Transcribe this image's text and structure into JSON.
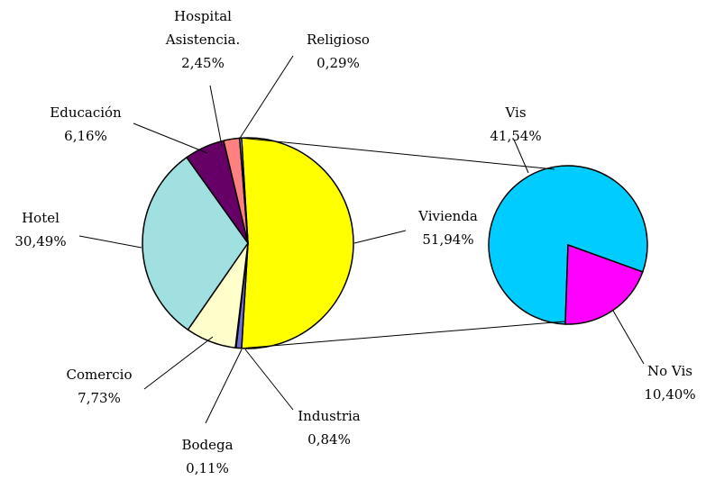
{
  "chart_data": {
    "type": "pie-of-pie",
    "categories": [
      "Vivienda",
      "Industria",
      "Bodega",
      "Comercio",
      "Hotel",
      "Educación",
      "Hospital Asistencia.",
      "Religioso"
    ],
    "values": [
      51.94,
      0.84,
      0.11,
      7.73,
      30.49,
      6.16,
      2.45,
      0.29
    ],
    "value_labels": [
      "51,94%",
      "0,84%",
      "0,11%",
      "7,73%",
      "30,49%",
      "6,16%",
      "2,45%",
      "0,29%"
    ],
    "colors": [
      "#ffff00",
      "#7070d8",
      "#993366",
      "#ffffcc",
      "#a0e0e0",
      "#660066",
      "#ff8080",
      "#ccffff"
    ],
    "breakout": {
      "categories": [
        "Vis",
        "No Vis"
      ],
      "values": [
        41.54,
        10.4
      ],
      "value_labels": [
        "41,54%",
        "10,40%"
      ],
      "colors": [
        "#00ccff",
        "#ff00ff"
      ]
    }
  }
}
